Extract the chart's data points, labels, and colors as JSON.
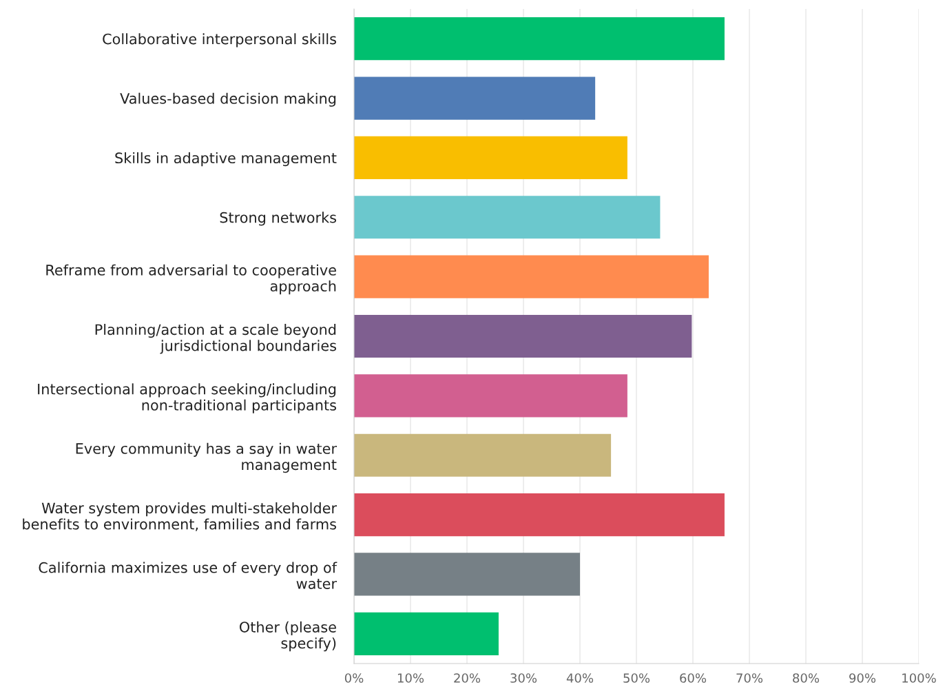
{
  "chart_data": {
    "type": "bar",
    "orientation": "horizontal",
    "categories": [
      "Collaborative interpersonal skills",
      "Values-based decision making",
      "Skills in adaptive management",
      "Strong networks",
      "Reframe from adversarial to cooperative\napproach",
      "Planning/action at a scale beyond\njurisdictional boundaries",
      "Intersectional approach seeking/including\nnon-traditional participants",
      "Every community has a say in water\nmanagement",
      "Water system provides multi-stakeholder\nbenefits to environment, families and farms",
      "California maximizes use of every drop of\nwater",
      "Other (please\nspecify)"
    ],
    "values": [
      65.6,
      42.7,
      48.4,
      54.2,
      62.8,
      59.8,
      48.4,
      45.5,
      65.6,
      40.0,
      25.6
    ],
    "colors": [
      "#00bf6f",
      "#507cb6",
      "#f9be00",
      "#6bc8cd",
      "#ff8b4f",
      "#7f5f90",
      "#d25f90",
      "#c9b77d",
      "#db4d5c",
      "#768086",
      "#00bf6f"
    ],
    "xlim": [
      0,
      100
    ],
    "xticks": [
      {
        "value": 0,
        "label": "0%"
      },
      {
        "value": 10,
        "label": "10%"
      },
      {
        "value": 20,
        "label": "20%"
      },
      {
        "value": 30,
        "label": "30%"
      },
      {
        "value": 40,
        "label": "40%"
      },
      {
        "value": 50,
        "label": "50%"
      },
      {
        "value": 60,
        "label": "60%"
      },
      {
        "value": 70,
        "label": "70%"
      },
      {
        "value": 80,
        "label": "80%"
      },
      {
        "value": 90,
        "label": "90%"
      },
      {
        "value": 100,
        "label": "100%"
      }
    ],
    "grid": "x"
  }
}
